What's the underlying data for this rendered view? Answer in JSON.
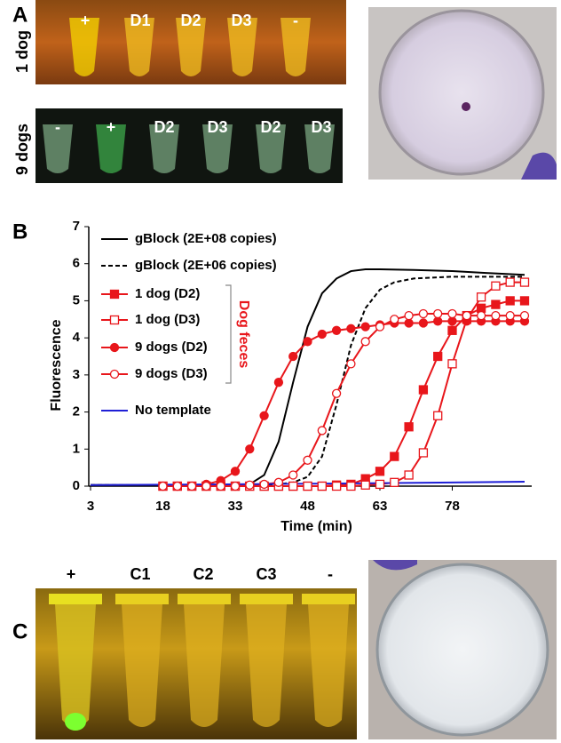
{
  "panel_a": {
    "label": "A",
    "top_row": {
      "side_label": "1 dog",
      "tube_labels": [
        "+",
        "D1",
        "D2",
        "D3",
        "-"
      ]
    },
    "bottom_row": {
      "side_label": "9 dogs",
      "tube_labels": [
        "-",
        "+",
        "D2",
        "D3",
        "D2",
        "D3"
      ]
    }
  },
  "panel_b": {
    "label": "B"
  },
  "chart_data": {
    "type": "line",
    "x_label": "Time (min)",
    "y_label": "Fluorescence",
    "xlim": [
      3,
      93
    ],
    "xticks": [
      3,
      18,
      33,
      48,
      63,
      78
    ],
    "ylim": [
      0,
      7
    ],
    "yticks": [
      0,
      1,
      2,
      3,
      4,
      5,
      6,
      7
    ],
    "grid": false,
    "legend": "upper left",
    "bracket_label": "Dog feces",
    "bracket_color": "#e8161b",
    "series": [
      {
        "name": "gBlock (2E+08 copies)",
        "color": "#000000",
        "dash": "solid",
        "marker": "none",
        "x": [
          3,
          18,
          30,
          33,
          36,
          39,
          42,
          45,
          48,
          51,
          54,
          57,
          60,
          63,
          70,
          78,
          85,
          93
        ],
        "values": [
          0.03,
          0.03,
          0.04,
          0.04,
          0.05,
          0.3,
          1.2,
          2.8,
          4.3,
          5.2,
          5.6,
          5.8,
          5.85,
          5.85,
          5.83,
          5.8,
          5.75,
          5.7
        ]
      },
      {
        "name": "gBlock (2E+06 copies)",
        "color": "#000000",
        "dash": "dashed",
        "marker": "none",
        "x": [
          3,
          18,
          30,
          42,
          45,
          48,
          51,
          54,
          57,
          60,
          63,
          66,
          70,
          78,
          93
        ],
        "values": [
          0.03,
          0.03,
          0.04,
          0.05,
          0.1,
          0.25,
          0.8,
          2.2,
          3.8,
          4.8,
          5.3,
          5.5,
          5.6,
          5.65,
          5.65
        ]
      },
      {
        "name": "1 dog (D2)",
        "color": "#e8161b",
        "dash": "solid",
        "marker": "filled-square",
        "x": [
          18,
          21,
          24,
          27,
          30,
          33,
          36,
          39,
          42,
          45,
          48,
          51,
          54,
          57,
          60,
          63,
          66,
          69,
          72,
          75,
          78,
          81,
          84,
          87,
          90,
          93
        ],
        "values": [
          0,
          0,
          0,
          0,
          0,
          0,
          0,
          0,
          0,
          0,
          0,
          0,
          0.03,
          0.05,
          0.2,
          0.4,
          0.8,
          1.6,
          2.6,
          3.5,
          4.2,
          4.6,
          4.8,
          4.9,
          5.0,
          5.0
        ]
      },
      {
        "name": "1 dog (D3)",
        "color": "#e8161b",
        "dash": "solid",
        "marker": "open-square",
        "x": [
          18,
          21,
          24,
          27,
          30,
          33,
          36,
          39,
          42,
          45,
          48,
          51,
          54,
          57,
          60,
          63,
          66,
          69,
          72,
          75,
          78,
          81,
          84,
          87,
          90,
          93
        ],
        "values": [
          0,
          0,
          0,
          0,
          0,
          0,
          0,
          0,
          0,
          0,
          0,
          0,
          0,
          0,
          0.03,
          0.05,
          0.1,
          0.3,
          0.9,
          1.9,
          3.3,
          4.5,
          5.1,
          5.4,
          5.5,
          5.5
        ]
      },
      {
        "name": "9 dogs (D2)",
        "color": "#e8161b",
        "dash": "solid",
        "marker": "filled-circle",
        "x": [
          18,
          21,
          24,
          27,
          30,
          33,
          36,
          39,
          42,
          45,
          48,
          51,
          54,
          57,
          60,
          63,
          66,
          69,
          72,
          75,
          78,
          81,
          84,
          87,
          90,
          93
        ],
        "values": [
          0,
          0,
          0,
          0.05,
          0.15,
          0.4,
          1.0,
          1.9,
          2.8,
          3.5,
          3.9,
          4.1,
          4.2,
          4.25,
          4.3,
          4.35,
          4.4,
          4.4,
          4.4,
          4.45,
          4.45,
          4.45,
          4.45,
          4.45,
          4.45,
          4.45
        ]
      },
      {
        "name": "9 dogs (D3)",
        "color": "#e8161b",
        "dash": "solid",
        "marker": "open-circle",
        "x": [
          18,
          21,
          24,
          27,
          30,
          33,
          36,
          39,
          42,
          45,
          48,
          51,
          54,
          57,
          60,
          63,
          66,
          69,
          72,
          75,
          78,
          81,
          84,
          87,
          90,
          93
        ],
        "values": [
          0,
          0,
          0,
          0,
          0,
          0,
          0.03,
          0.05,
          0.1,
          0.3,
          0.7,
          1.5,
          2.5,
          3.3,
          3.9,
          4.3,
          4.5,
          4.6,
          4.65,
          4.65,
          4.65,
          4.6,
          4.6,
          4.6,
          4.6,
          4.6
        ]
      },
      {
        "name": "No template",
        "color": "#1f1fd6",
        "dash": "solid",
        "marker": "none",
        "x": [
          3,
          33,
          63,
          93
        ],
        "values": [
          0.03,
          0.05,
          0.08,
          0.12
        ]
      }
    ]
  },
  "panel_c": {
    "label": "C",
    "tube_labels": [
      "+",
      "C1",
      "C2",
      "C3",
      "-"
    ]
  }
}
